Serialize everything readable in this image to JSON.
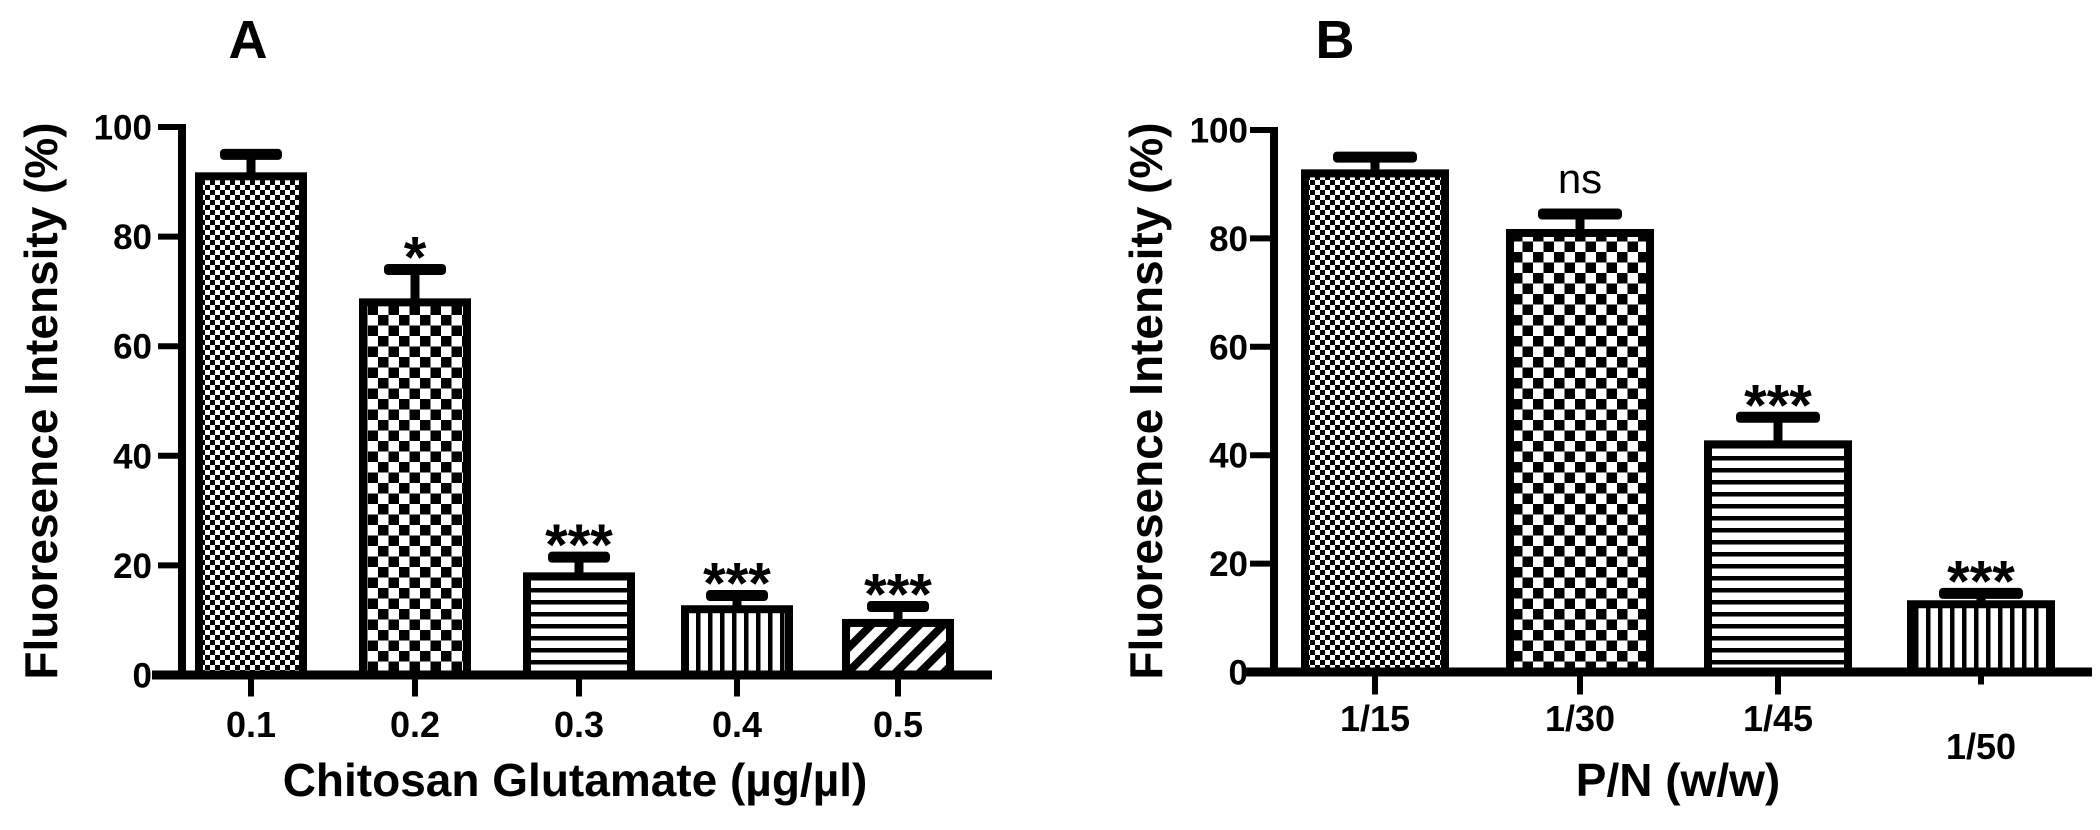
{
  "figure": {
    "kind": "two-panel-scientific-bar-figure",
    "background": "#ffffff",
    "ink": "#000000",
    "panel_labels": [
      "A",
      "B"
    ]
  },
  "chart_data": [
    {
      "type": "bar",
      "panel_label": "A",
      "title": "",
      "xlabel": "Chitosan Glutamate (µg/µl)",
      "ylabel": "Fluoresence Intensity (%)",
      "ylim": [
        0,
        100
      ],
      "yticks": [
        0,
        20,
        40,
        60,
        80,
        100
      ],
      "grid": false,
      "legend_position": "none",
      "categories": [
        "0.1",
        "0.2",
        "0.3",
        "0.4",
        "0.5"
      ],
      "values": [
        91,
        68,
        18,
        12,
        9.5
      ],
      "errors_plus": [
        4,
        6,
        3.5,
        2.5,
        3
      ],
      "significance": [
        "",
        "*",
        "***",
        "***",
        "***"
      ],
      "bar_patterns": [
        "fine-checker",
        "checker",
        "horizontal-lines",
        "vertical-lines",
        "diagonal-lines"
      ],
      "bar_style": "black-pattern-on-white-with-thick-outline",
      "xtick_label_offsets": [
        0,
        0,
        0,
        0,
        0
      ]
    },
    {
      "type": "bar",
      "panel_label": "B",
      "title": "",
      "xlabel": "P/N (w/w)",
      "ylabel": "Fluoresence Intensity (%)",
      "ylim": [
        0,
        100
      ],
      "yticks": [
        0,
        20,
        40,
        60,
        80,
        100
      ],
      "grid": false,
      "legend_position": "none",
      "categories": [
        "1/15",
        "1/30",
        "1/45",
        "1/50"
      ],
      "values": [
        92,
        81,
        42,
        12.5
      ],
      "errors_plus": [
        3,
        3.5,
        5,
        2
      ],
      "significance": [
        "",
        "ns",
        "***",
        "***"
      ],
      "bar_patterns": [
        "fine-checker",
        "checker",
        "horizontal-lines",
        "vertical-lines"
      ],
      "bar_style": "black-pattern-on-white-with-thick-outline",
      "xtick_label_offsets": [
        0,
        0,
        0,
        28
      ]
    }
  ]
}
